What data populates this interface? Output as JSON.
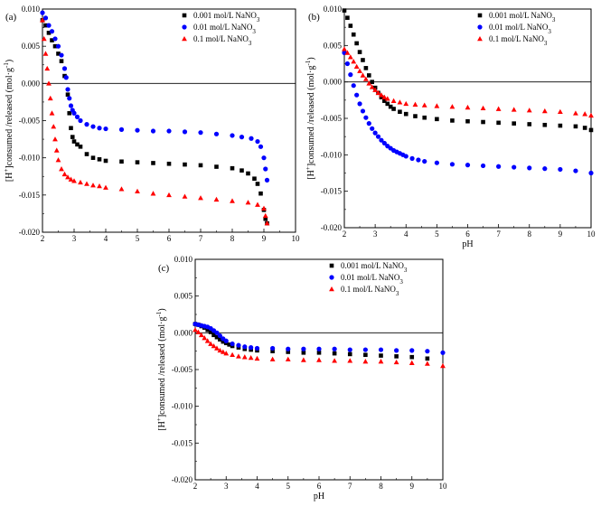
{
  "figure": {
    "legend_suffix": "3"
  },
  "chart_data": [
    {
      "id": "a",
      "type": "scatter",
      "panel_label": "(a)",
      "xlabel": "",
      "ylabel_parts": [
        "[H",
        "+",
        "]consumed /released (mol·g",
        "-1",
        ")"
      ],
      "xlim": [
        2,
        10
      ],
      "ylim": [
        -0.02,
        0.01
      ],
      "x_ticks": [
        "2",
        "3",
        "4",
        "5",
        "6",
        "7",
        "8",
        "9",
        "10"
      ],
      "y_ticks": [
        "-0.020",
        "-0.015",
        "-0.010",
        "-0.005",
        "0.000",
        "0.005",
        "0.010"
      ],
      "zero_line": true,
      "legend_position": "top-right",
      "series": [
        {
          "name": "0.001 mol/L NaNO",
          "marker": "square",
          "color": "#000000",
          "x": [
            2.0,
            2.1,
            2.2,
            2.3,
            2.4,
            2.5,
            2.6,
            2.7,
            2.8,
            2.85,
            2.9,
            2.95,
            3.0,
            3.1,
            3.2,
            3.4,
            3.6,
            3.8,
            4.0,
            4.5,
            5.0,
            5.5,
            6.0,
            6.5,
            7.0,
            7.5,
            8.0,
            8.3,
            8.5,
            8.7,
            8.8,
            8.9,
            9.0,
            9.05,
            9.1
          ],
          "y": [
            0.0085,
            0.0078,
            0.0068,
            0.0058,
            0.005,
            0.004,
            0.003,
            0.001,
            -0.0015,
            -0.004,
            -0.006,
            -0.0072,
            -0.0078,
            -0.0082,
            -0.0085,
            -0.0095,
            -0.01,
            -0.0102,
            -0.0104,
            -0.0105,
            -0.0106,
            -0.0107,
            -0.0108,
            -0.0109,
            -0.011,
            -0.0112,
            -0.0114,
            -0.0117,
            -0.0121,
            -0.0128,
            -0.0135,
            -0.0148,
            -0.017,
            -0.0182,
            -0.0188
          ]
        },
        {
          "name": "0.01 mol/L NaNO",
          "marker": "circle",
          "color": "#0000ff",
          "x": [
            2.0,
            2.1,
            2.2,
            2.3,
            2.4,
            2.5,
            2.6,
            2.7,
            2.75,
            2.8,
            2.85,
            2.9,
            2.95,
            3.0,
            3.1,
            3.2,
            3.4,
            3.6,
            3.8,
            4.0,
            4.5,
            5.0,
            5.5,
            6.0,
            6.5,
            7.0,
            7.5,
            8.0,
            8.3,
            8.6,
            8.8,
            8.9,
            9.0,
            9.05,
            9.1
          ],
          "y": [
            0.0095,
            0.0088,
            0.0078,
            0.007,
            0.006,
            0.005,
            0.0038,
            0.002,
            0.0008,
            -0.0008,
            -0.002,
            -0.003,
            -0.0036,
            -0.004,
            -0.0045,
            -0.005,
            -0.0055,
            -0.0058,
            -0.006,
            -0.0061,
            -0.0062,
            -0.0063,
            -0.0064,
            -0.0064,
            -0.0065,
            -0.0066,
            -0.0068,
            -0.007,
            -0.0072,
            -0.0074,
            -0.0078,
            -0.0085,
            -0.01,
            -0.0115,
            -0.013
          ]
        },
        {
          "name": "0.1 mol/L NaNO",
          "marker": "triangle",
          "color": "#ff0000",
          "x": [
            2.0,
            2.05,
            2.1,
            2.15,
            2.2,
            2.25,
            2.3,
            2.35,
            2.4,
            2.45,
            2.5,
            2.6,
            2.7,
            2.8,
            2.9,
            3.0,
            3.2,
            3.4,
            3.6,
            3.8,
            4.0,
            4.5,
            5.0,
            5.5,
            6.0,
            6.5,
            7.0,
            7.5,
            8.0,
            8.5,
            8.8,
            9.0,
            9.05,
            9.1
          ],
          "y": [
            0.0085,
            0.006,
            0.004,
            0.002,
            0.0,
            -0.002,
            -0.004,
            -0.0058,
            -0.0075,
            -0.009,
            -0.0103,
            -0.0115,
            -0.0122,
            -0.0126,
            -0.0129,
            -0.0131,
            -0.0133,
            -0.0135,
            -0.0137,
            -0.0138,
            -0.014,
            -0.0142,
            -0.0145,
            -0.0148,
            -0.015,
            -0.0152,
            -0.0154,
            -0.0156,
            -0.0158,
            -0.016,
            -0.0163,
            -0.0168,
            -0.0178,
            -0.0188
          ]
        }
      ]
    },
    {
      "id": "b",
      "type": "scatter",
      "panel_label": "(b)",
      "xlabel": "pH",
      "ylabel_parts": [
        "[H",
        "+",
        "]consumed /released (mol·g",
        "-1",
        ")"
      ],
      "xlim": [
        2,
        10
      ],
      "ylim": [
        -0.02,
        0.01
      ],
      "x_ticks": [
        "2",
        "3",
        "4",
        "5",
        "6",
        "7",
        "8",
        "9",
        "10"
      ],
      "y_ticks": [
        "-0.020",
        "-0.015",
        "-0.010",
        "-0.005",
        "0.000",
        "0.005",
        "0.010"
      ],
      "zero_line": true,
      "legend_position": "top-right",
      "series": [
        {
          "name": "0.001 mol/L NaNO",
          "marker": "square",
          "color": "#000000",
          "x": [
            2.0,
            2.1,
            2.2,
            2.3,
            2.4,
            2.5,
            2.6,
            2.7,
            2.8,
            2.9,
            3.0,
            3.1,
            3.2,
            3.3,
            3.4,
            3.5,
            3.6,
            3.8,
            4.0,
            4.3,
            4.6,
            5.0,
            5.5,
            6.0,
            6.5,
            7.0,
            7.5,
            8.0,
            8.5,
            9.0,
            9.5,
            9.8,
            10.0
          ],
          "y": [
            0.0098,
            0.0088,
            0.0077,
            0.0065,
            0.0053,
            0.0041,
            0.003,
            0.0019,
            0.0009,
            0.0,
            -0.0008,
            -0.0015,
            -0.0021,
            -0.0026,
            -0.003,
            -0.0034,
            -0.0037,
            -0.0041,
            -0.0044,
            -0.0047,
            -0.0049,
            -0.0051,
            -0.0053,
            -0.0054,
            -0.0055,
            -0.0056,
            -0.0057,
            -0.0058,
            -0.0059,
            -0.006,
            -0.0061,
            -0.0063,
            -0.0066
          ]
        },
        {
          "name": "0.01 mol/L NaNO",
          "marker": "circle",
          "color": "#0000ff",
          "x": [
            2.0,
            2.1,
            2.2,
            2.3,
            2.4,
            2.5,
            2.6,
            2.7,
            2.8,
            2.9,
            3.0,
            3.1,
            3.2,
            3.3,
            3.4,
            3.5,
            3.6,
            3.7,
            3.8,
            3.9,
            4.0,
            4.2,
            4.4,
            4.6,
            5.0,
            5.5,
            6.0,
            6.5,
            7.0,
            7.5,
            8.0,
            8.5,
            9.0,
            9.5,
            10.0
          ],
          "y": [
            0.004,
            0.0025,
            0.001,
            -0.0005,
            -0.0018,
            -0.003,
            -0.004,
            -0.0049,
            -0.0057,
            -0.0064,
            -0.007,
            -0.0075,
            -0.008,
            -0.0084,
            -0.0088,
            -0.0091,
            -0.0094,
            -0.0096,
            -0.0098,
            -0.01,
            -0.0102,
            -0.0105,
            -0.0107,
            -0.0109,
            -0.0111,
            -0.0113,
            -0.0114,
            -0.0115,
            -0.0116,
            -0.0117,
            -0.0118,
            -0.0119,
            -0.012,
            -0.0122,
            -0.0125
          ]
        },
        {
          "name": "0.1 mol/L NaNO",
          "marker": "triangle",
          "color": "#ff0000",
          "x": [
            2.0,
            2.1,
            2.2,
            2.3,
            2.4,
            2.5,
            2.6,
            2.7,
            2.8,
            2.9,
            3.0,
            3.1,
            3.2,
            3.3,
            3.4,
            3.6,
            3.8,
            4.0,
            4.3,
            4.6,
            5.0,
            5.5,
            6.0,
            6.5,
            7.0,
            7.5,
            8.0,
            8.5,
            9.0,
            9.5,
            9.8,
            10.0
          ],
          "y": [
            0.0045,
            0.004,
            0.0034,
            0.0028,
            0.0021,
            0.0015,
            0.0009,
            0.0004,
            -0.0002,
            -0.0007,
            -0.0011,
            -0.0015,
            -0.0018,
            -0.0021,
            -0.0023,
            -0.0026,
            -0.0028,
            -0.003,
            -0.0031,
            -0.0032,
            -0.0033,
            -0.0034,
            -0.0035,
            -0.0036,
            -0.0037,
            -0.0038,
            -0.0039,
            -0.004,
            -0.0041,
            -0.0043,
            -0.0044,
            -0.0046
          ]
        }
      ]
    },
    {
      "id": "c",
      "type": "scatter",
      "panel_label": "(c)",
      "xlabel": "pH",
      "ylabel_parts": [
        "[H",
        "+",
        "]consumed /released (mol·g",
        "-1",
        ")"
      ],
      "xlim": [
        2,
        10
      ],
      "ylim": [
        -0.02,
        0.01
      ],
      "x_ticks": [
        "2",
        "3",
        "4",
        "5",
        "6",
        "7",
        "8",
        "9",
        "10"
      ],
      "y_ticks": [
        "-0.020",
        "-0.015",
        "-0.010",
        "-0.005",
        "0.000",
        "0.005",
        "0.010"
      ],
      "zero_line": true,
      "legend_position": "top-right",
      "series": [
        {
          "name": "0.001 mol/L NaNO",
          "marker": "square",
          "color": "#000000",
          "x": [
            2.0,
            2.1,
            2.2,
            2.3,
            2.4,
            2.5,
            2.6,
            2.7,
            2.8,
            2.9,
            3.0,
            3.1,
            3.2,
            3.4,
            3.6,
            3.8,
            4.0,
            4.5,
            5.0,
            5.5,
            6.0,
            6.5,
            7.0,
            7.5,
            8.0,
            8.5,
            9.0,
            9.5
          ],
          "y": [
            0.0012,
            0.0011,
            0.0009,
            0.0007,
            0.0004,
            0.0001,
            -0.0003,
            -0.0006,
            -0.0009,
            -0.0012,
            -0.0014,
            -0.0016,
            -0.0018,
            -0.002,
            -0.0022,
            -0.0023,
            -0.0024,
            -0.0025,
            -0.0026,
            -0.0027,
            -0.0027,
            -0.0028,
            -0.0029,
            -0.003,
            -0.0031,
            -0.0032,
            -0.0033,
            -0.0035
          ]
        },
        {
          "name": "0.01 mol/L NaNO",
          "marker": "circle",
          "color": "#0000ff",
          "x": [
            2.0,
            2.1,
            2.2,
            2.3,
            2.4,
            2.5,
            2.6,
            2.7,
            2.8,
            2.9,
            3.0,
            3.2,
            3.4,
            3.6,
            3.8,
            4.0,
            4.5,
            5.0,
            5.5,
            6.0,
            6.5,
            7.0,
            7.5,
            8.0,
            8.5,
            9.0,
            9.5,
            10.0
          ],
          "y": [
            0.0012,
            0.0011,
            0.001,
            0.0009,
            0.0008,
            0.0006,
            0.0003,
            0.0,
            -0.0004,
            -0.0008,
            -0.0011,
            -0.0015,
            -0.0017,
            -0.0019,
            -0.002,
            -0.0021,
            -0.0021,
            -0.0022,
            -0.0022,
            -0.0022,
            -0.0022,
            -0.0023,
            -0.0023,
            -0.0023,
            -0.0024,
            -0.0024,
            -0.0025,
            -0.0027
          ]
        },
        {
          "name": "0.1 mol/L NaNO",
          "marker": "triangle",
          "color": "#ff0000",
          "x": [
            2.0,
            2.1,
            2.2,
            2.3,
            2.4,
            2.5,
            2.6,
            2.7,
            2.8,
            2.9,
            3.0,
            3.2,
            3.4,
            3.6,
            3.8,
            4.0,
            4.5,
            5.0,
            5.5,
            6.0,
            6.5,
            7.0,
            7.5,
            8.0,
            8.5,
            9.0,
            9.5,
            10.0
          ],
          "y": [
            0.0004,
            0.0001,
            -0.0003,
            -0.0007,
            -0.0011,
            -0.0015,
            -0.0018,
            -0.0021,
            -0.0024,
            -0.0026,
            -0.0028,
            -0.003,
            -0.0032,
            -0.0033,
            -0.0034,
            -0.0035,
            -0.0036,
            -0.0036,
            -0.0037,
            -0.0037,
            -0.0038,
            -0.0038,
            -0.0039,
            -0.0039,
            -0.004,
            -0.0041,
            -0.0042,
            -0.0045
          ]
        }
      ]
    }
  ]
}
